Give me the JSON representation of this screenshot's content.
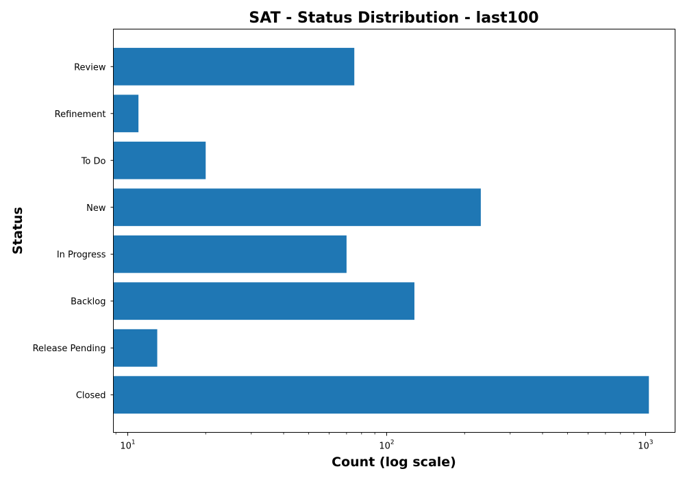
{
  "chart_data": {
    "type": "bar",
    "orientation": "horizontal",
    "title": "SAT - Status Distribution - last100",
    "xlabel": "Count (log scale)",
    "ylabel": "Status",
    "x_scale": "log",
    "xlim": [
      8.8,
      1300
    ],
    "x_ticks": [
      {
        "value": 10,
        "base": "10",
        "exp": "1"
      },
      {
        "value": 100,
        "base": "10",
        "exp": "2"
      },
      {
        "value": 1000,
        "base": "10",
        "exp": "3"
      }
    ],
    "minor_ticks": true,
    "grid": false,
    "bar_color": "#1f77b4",
    "categories": [
      "Closed",
      "Release Pending",
      "Backlog",
      "In Progress",
      "New",
      "To Do",
      "Refinement",
      "Review"
    ],
    "values": [
      1030,
      13,
      128,
      70,
      231,
      20,
      11,
      75
    ]
  }
}
